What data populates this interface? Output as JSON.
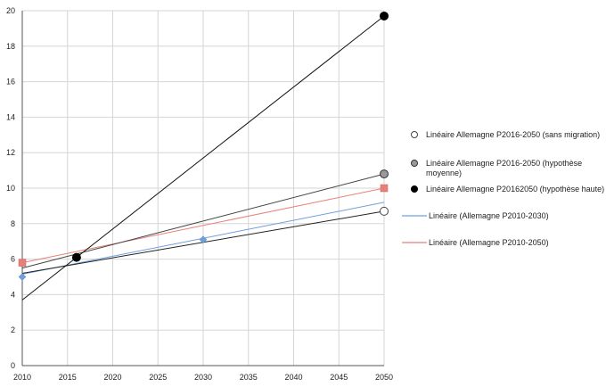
{
  "chart_data": {
    "type": "scatter",
    "title": "",
    "xlabel": "",
    "ylabel": "",
    "xlim": [
      2010,
      2050
    ],
    "ylim": [
      0,
      20
    ],
    "x_ticks": [
      "2010",
      "2015",
      "2020",
      "2025",
      "2030",
      "2035",
      "2040",
      "2045",
      "2050"
    ],
    "y_ticks": [
      "0",
      "2",
      "4",
      "6",
      "8",
      "10",
      "12",
      "14",
      "16",
      "18",
      "20"
    ],
    "grid": "vertical and horizontal",
    "legend_position": "right",
    "point_series": [
      {
        "name": "Allemagne P2010-2030",
        "marker": "diamond",
        "color": "#6fa0dc",
        "points": [
          [
            2010,
            5.0
          ],
          [
            2016,
            6.05
          ],
          [
            2030,
            7.1
          ]
        ]
      },
      {
        "name": "Allemagne P2010-2050",
        "marker": "square",
        "color": "#e8807a",
        "points": [
          [
            2010,
            5.8
          ],
          [
            2050,
            10.0
          ]
        ]
      },
      {
        "name": "Allemagne P2016-2050 (sans migration)",
        "marker": "circle-open",
        "color": "#ffffff",
        "points": [
          [
            2050,
            8.7
          ]
        ]
      },
      {
        "name": "Allemagne P2016-2050 (hypothèse moyenne)",
        "marker": "circle-gray",
        "color": "#999999",
        "points": [
          [
            2050,
            10.8
          ]
        ]
      },
      {
        "name": "Allemagne P20162050 (hypothèse haute)",
        "marker": "circle-black",
        "color": "#000000",
        "points": [
          [
            2016,
            6.1
          ],
          [
            2050,
            19.7
          ]
        ]
      }
    ],
    "trendlines": [
      {
        "name": "Linéaire (Allemagne P2010-2030)",
        "color": "#6fa0dc",
        "points": [
          [
            2010,
            5.15
          ],
          [
            2050,
            9.2
          ]
        ]
      },
      {
        "name": "Linéaire (Allemagne P2010-2050)",
        "color": "#e8807a",
        "points": [
          [
            2010,
            5.8
          ],
          [
            2050,
            10.0
          ]
        ]
      },
      {
        "name": "Linéaire Allemagne P2016-2050 (sans migration)",
        "color": "#222222",
        "points": [
          [
            2010,
            5.2
          ],
          [
            2050,
            8.7
          ]
        ]
      },
      {
        "name": "Linéaire Allemagne P2016-2050 (hypothèse moyenne)",
        "color": "#444444",
        "points": [
          [
            2010,
            5.5
          ],
          [
            2050,
            10.8
          ]
        ]
      },
      {
        "name": "Linéaire Allemagne P20162050 (hypothèse haute)",
        "color": "#111111",
        "points": [
          [
            2010,
            3.7
          ],
          [
            2050,
            19.7
          ]
        ]
      }
    ],
    "legend": [
      {
        "marker": "circle-open",
        "color": "#ffffff",
        "lines": [
          "Linéaire Allemagne P2016-2050 (sans migration)"
        ]
      },
      {
        "marker": "circle-gray",
        "color": "#999999",
        "lines": [
          "Linéaire Allemagne P2016-2050 (hypothèse",
          "moyenne)"
        ]
      },
      {
        "marker": "circle-black",
        "color": "#000000",
        "lines": [
          "Linéaire Allemagne P20162050 (hypothèse haute)"
        ]
      },
      {
        "marker": "line",
        "color": "#6fa0dc",
        "lines": [
          "Linéaire (Allemagne P2010-2030)"
        ]
      },
      {
        "marker": "line",
        "color": "#e8807a",
        "lines": [
          "Linéaire (Allemagne P2010-2050)"
        ]
      }
    ]
  }
}
